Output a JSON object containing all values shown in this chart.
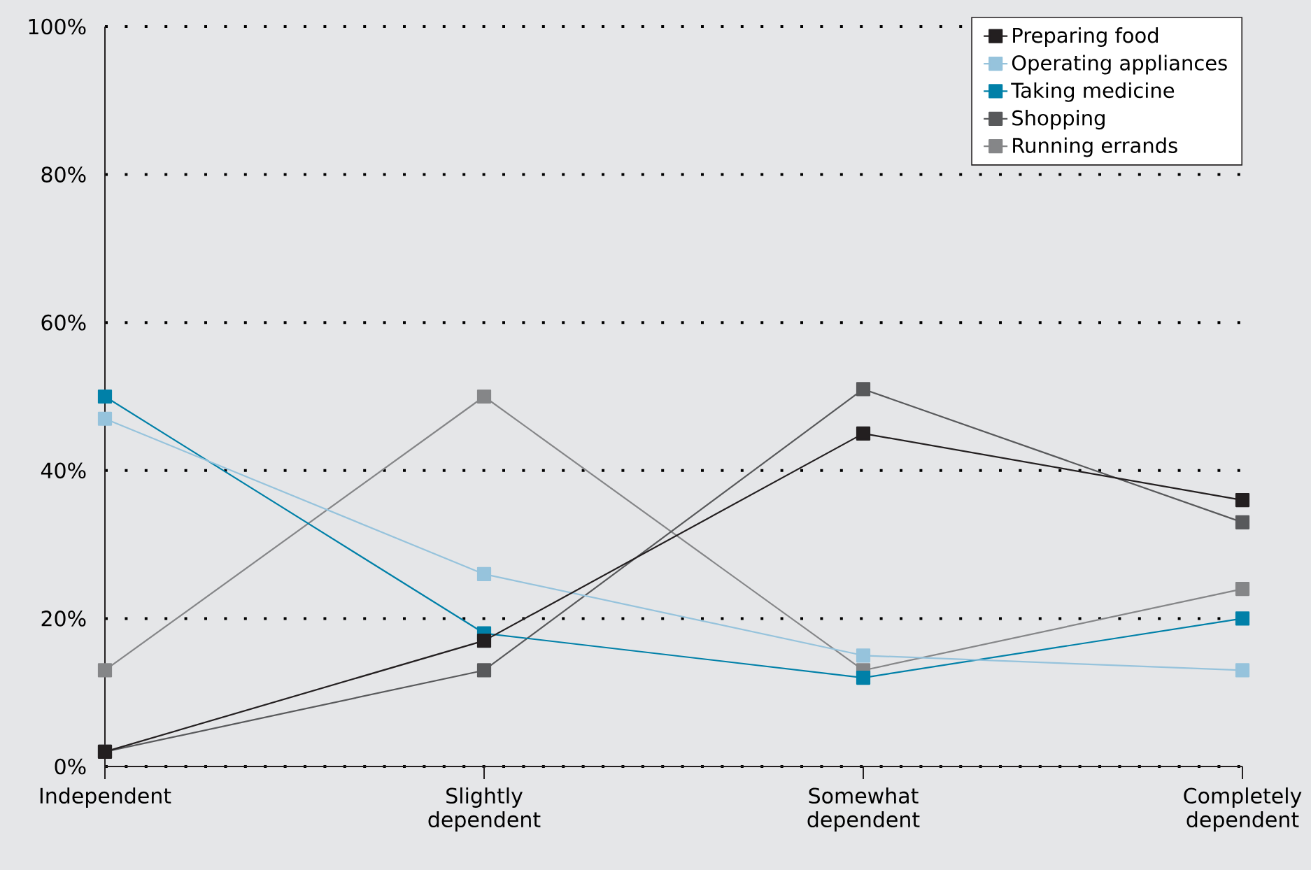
{
  "chart_data": {
    "type": "line",
    "categories": [
      "Independent",
      "Slightly dependent",
      "Somewhat dependent",
      "Completely dependent"
    ],
    "ylim": [
      0,
      100
    ],
    "yticks": [
      {
        "value": 0,
        "label": "0%"
      },
      {
        "value": 20,
        "label": "20%"
      },
      {
        "value": 40,
        "label": "40%"
      },
      {
        "value": 60,
        "label": "60%"
      },
      {
        "value": 80,
        "label": "80%"
      },
      {
        "value": 100,
        "label": "100%"
      }
    ],
    "grid": "y",
    "legend": "top right",
    "marker": "square",
    "line_style": "solid",
    "series": [
      {
        "name": "Preparing food",
        "color": "#231f20",
        "values": [
          2,
          17,
          45,
          36
        ]
      },
      {
        "name": "Operating appliances",
        "color": "#96c3dc",
        "values": [
          47,
          26,
          15,
          13
        ]
      },
      {
        "name": "Taking medicine",
        "color": "#0080a8",
        "values": [
          50,
          18,
          12,
          20
        ]
      },
      {
        "name": "Shopping",
        "color": "#58595b",
        "values": [
          2,
          13,
          51,
          33
        ]
      },
      {
        "name": "Running errands",
        "color": "#858688",
        "values": [
          13,
          50,
          13,
          24
        ]
      }
    ]
  }
}
